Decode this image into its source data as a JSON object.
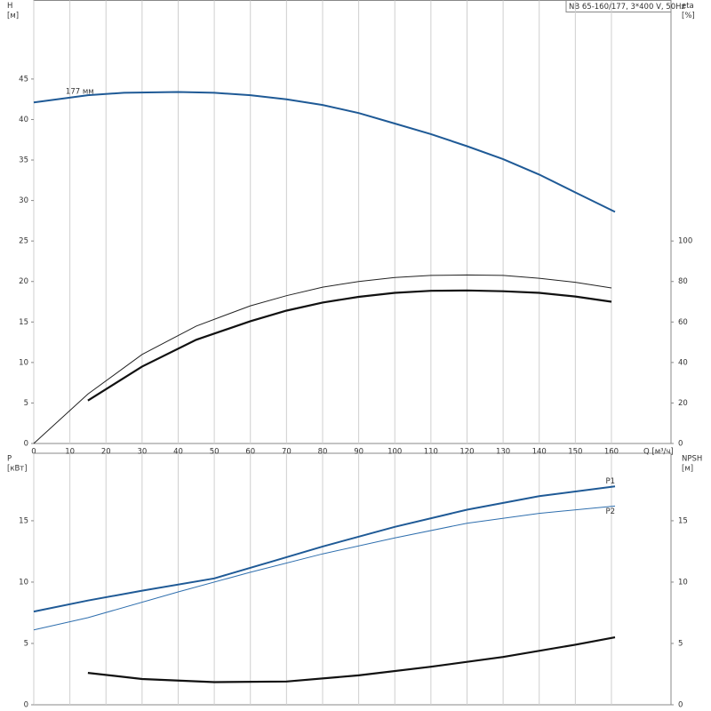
{
  "chart_data": [
    {
      "type": "line",
      "title": "NB 65-160/177, 3*400 V, 50Hz",
      "xlabel": "Q [м³/ч]",
      "ylabel": [
        "H",
        "[м]"
      ],
      "y2label": [
        "eta",
        "[%]"
      ],
      "xlim": [
        0,
        176.5
      ],
      "ylim": [
        0,
        54.7
      ],
      "y2lim": [
        0,
        218.8
      ],
      "xticks": [
        0,
        10,
        20,
        30,
        40,
        50,
        60,
        70,
        80,
        90,
        100,
        110,
        120,
        130,
        140,
        150,
        160
      ],
      "yticks": [
        0,
        5,
        10,
        15,
        20,
        25,
        30,
        35,
        40,
        45
      ],
      "y2ticks": [
        0,
        20,
        40,
        60,
        80,
        100
      ],
      "grid": "x",
      "show_xtick_labels": true,
      "series": [
        {
          "name": "177 мм",
          "color": "#1f5a96",
          "width": 2,
          "x": [
            0,
            15,
            25,
            40,
            50,
            60,
            70,
            80,
            90,
            100,
            110,
            120,
            130,
            140,
            150,
            161
          ],
          "values": [
            42.1,
            43.0,
            43.3,
            43.4,
            43.3,
            43.0,
            42.5,
            41.8,
            40.8,
            39.5,
            38.2,
            36.7,
            35.1,
            33.2,
            31.0,
            28.6
          ]
        },
        {
          "color": "#222222",
          "width": 1,
          "axis": "y2",
          "x": [
            0,
            15,
            30,
            45,
            60,
            70,
            80,
            90,
            100,
            110,
            120,
            130,
            140,
            150,
            160
          ],
          "values": [
            0,
            24.4,
            44,
            58,
            68,
            73,
            77.2,
            80,
            82,
            83,
            83.2,
            83,
            81.6,
            79.6,
            76.8
          ]
        },
        {
          "color": "#111111",
          "width": 2.2,
          "axis": "y2",
          "x": [
            15,
            30,
            45,
            60,
            70,
            80,
            90,
            100,
            110,
            120,
            130,
            140,
            150,
            160
          ],
          "values": [
            21.2,
            38,
            51.2,
            60.4,
            65.6,
            69.6,
            72.4,
            74.4,
            75.4,
            75.6,
            75.2,
            74.4,
            72.6,
            70
          ]
        }
      ]
    },
    {
      "type": "line",
      "ylabel": [
        "P",
        "[кВт]"
      ],
      "y2label": [
        "NPSH",
        "[м]"
      ],
      "xlim": [
        0,
        176.5
      ],
      "ylim": [
        0,
        20.5
      ],
      "y2lim": [
        0,
        20.5
      ],
      "xticks": [
        0,
        10,
        20,
        30,
        40,
        50,
        60,
        70,
        80,
        90,
        100,
        110,
        120,
        130,
        140,
        150,
        160
      ],
      "yticks": [
        0,
        5,
        10,
        15
      ],
      "y2ticks": [
        0,
        5,
        10,
        15
      ],
      "grid": "x",
      "show_xtick_labels": false,
      "series": [
        {
          "name": "P1",
          "color": "#1f5a96",
          "width": 2,
          "x": [
            0,
            15,
            30,
            50,
            65,
            80,
            100,
            120,
            140,
            161
          ],
          "values": [
            7.6,
            8.5,
            9.3,
            10.3,
            11.6,
            12.9,
            14.5,
            15.9,
            17.0,
            17.8
          ]
        },
        {
          "name": "P2",
          "color": "#2f6fae",
          "width": 1,
          "x": [
            0,
            15,
            40,
            60,
            80,
            100,
            120,
            140,
            161
          ],
          "values": [
            6.1,
            7.1,
            9.2,
            10.8,
            12.3,
            13.6,
            14.8,
            15.6,
            16.2
          ]
        },
        {
          "color": "#111111",
          "width": 2.2,
          "axis": "y2",
          "x": [
            15,
            30,
            50,
            70,
            90,
            110,
            130,
            150,
            161
          ],
          "values": [
            2.6,
            2.1,
            1.85,
            1.9,
            2.4,
            3.1,
            3.9,
            4.9,
            5.5
          ]
        }
      ]
    }
  ]
}
